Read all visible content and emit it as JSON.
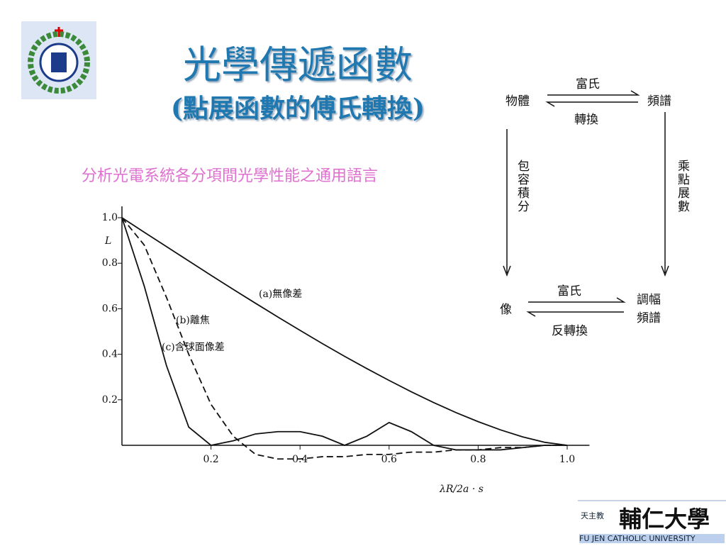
{
  "header": {
    "title": "光學傳遞函數",
    "subtitle": "(點展函數的傅氏轉換)",
    "note": "分析光電系統各分項間光學性能之通用語言"
  },
  "diagram": {
    "object": "物體",
    "spectrum": "頻譜",
    "image": "像",
    "mtf_spectrum": "調幅頻譜",
    "top_arrow_upper": "富氏",
    "top_arrow_lower": "轉換",
    "left_arrow": "包容積分",
    "right_arrow": "乘點展數",
    "bottom_arrow_upper": "富氏",
    "bottom_arrow_lower": "反轉換"
  },
  "logo": {
    "prefix": "天主教",
    "name": "輔仁大學",
    "english": "FU JEN CATHOLIC UNIVERSITY"
  },
  "chart_data": {
    "type": "line",
    "y_label": "L",
    "x_label": "λR/2a · s",
    "x": [
      0,
      0.05,
      0.1,
      0.15,
      0.2,
      0.25,
      0.3,
      0.35,
      0.4,
      0.45,
      0.5,
      0.55,
      0.6,
      0.65,
      0.7,
      0.75,
      0.8,
      0.85,
      0.9,
      0.95,
      1.0
    ],
    "series": [
      {
        "name": "(a)無像差",
        "color": "#111111",
        "linestyle": "solid",
        "values": [
          1,
          0.936,
          0.873,
          0.81,
          0.747,
          0.685,
          0.624,
          0.564,
          0.505,
          0.447,
          0.391,
          0.337,
          0.285,
          0.235,
          0.188,
          0.144,
          0.104,
          0.068,
          0.037,
          0.013,
          0
        ]
      },
      {
        "name": "(b)離焦",
        "color": "#111111",
        "linestyle": "dashed",
        "values": [
          1,
          0.88,
          0.65,
          0.4,
          0.18,
          0.04,
          -0.04,
          -0.06,
          -0.06,
          -0.05,
          -0.05,
          -0.04,
          -0.04,
          -0.03,
          -0.03,
          -0.02,
          -0.02,
          -0.01,
          -0.01,
          0,
          0
        ]
      },
      {
        "name": "(c)含球面像差",
        "color": "#111111",
        "linestyle": "solid",
        "values": [
          1,
          0.7,
          0.35,
          0.08,
          0,
          0.02,
          0.05,
          0.06,
          0.06,
          0.04,
          0,
          0.04,
          0.1,
          0.06,
          0,
          -0.02,
          -0.02,
          -0.02,
          -0.01,
          0,
          0
        ]
      }
    ],
    "xlim": [
      0,
      1.05
    ],
    "ylim": [
      -0.1,
      1.05
    ],
    "xticks": [
      0.2,
      0.4,
      0.6,
      0.8,
      {
        "value": 1,
        "label": "1.0"
      }
    ],
    "yticks": [
      0.2,
      0.4,
      0.6,
      0.8,
      {
        "value": 1,
        "label": "1.0"
      }
    ]
  }
}
